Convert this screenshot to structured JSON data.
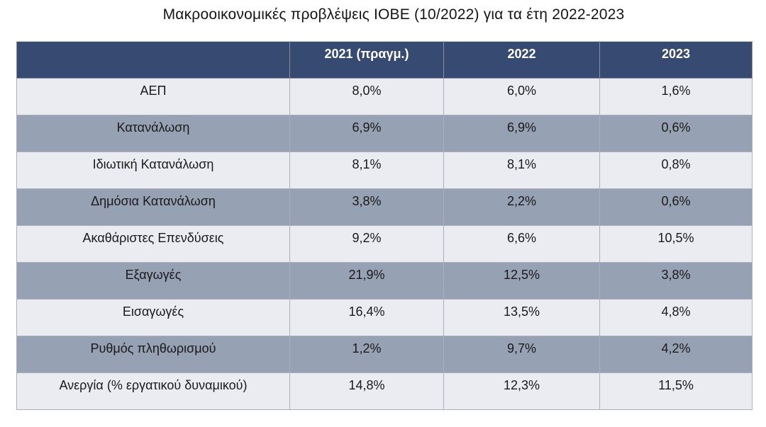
{
  "title": "Μακροοικονομικές προβλέψεις ΙΟΒΕ (10/2022) για τα έτη 2022-2023",
  "table": {
    "headers": [
      "",
      "2021 (πραγμ.)",
      "2022",
      "2023"
    ],
    "rows": [
      {
        "label": "ΑΕΠ",
        "values": [
          "8,0%",
          "6,0%",
          "1,6%"
        ]
      },
      {
        "label": "Κατανάλωση",
        "values": [
          "6,9%",
          "6,9%",
          "0,6%"
        ]
      },
      {
        "label": "Ιδιωτική Κατανάλωση",
        "values": [
          "8,1%",
          "8,1%",
          "0,8%"
        ]
      },
      {
        "label": "Δημόσια Κατανάλωση",
        "values": [
          "3,8%",
          "2,2%",
          "0,6%"
        ]
      },
      {
        "label": "Ακαθάριστες Επενδύσεις",
        "values": [
          "9,2%",
          "6,6%",
          "10,5%"
        ]
      },
      {
        "label": "Εξαγωγές",
        "values": [
          "21,9%",
          "12,5%",
          "3,8%"
        ]
      },
      {
        "label": "Εισαγωγές",
        "values": [
          "16,4%",
          "13,5%",
          "4,8%"
        ]
      },
      {
        "label": "Ρυθμός πληθωρισμού",
        "values": [
          "1,2%",
          "9,7%",
          "4,2%"
        ]
      },
      {
        "label": "Ανεργία (% εργατικού δυναμικού)",
        "values": [
          "14,8%",
          "12,3%",
          "11,5%"
        ]
      }
    ]
  },
  "colors": {
    "header_bg": "#364a72",
    "header_text": "#ffffff",
    "row_light_bg": "#eaecf1",
    "row_dark_bg": "#97a1b4",
    "grid_line": "#aab0be",
    "body_text": "#1a1a1a"
  },
  "chart_data": {
    "type": "table",
    "title": "Μακροοικονομικές προβλέψεις ΙΟΒΕ (10/2022) για τα έτη 2022-2023",
    "columns": [
      "2021 (πραγμ.)",
      "2022",
      "2023"
    ],
    "categories": [
      "ΑΕΠ",
      "Κατανάλωση",
      "Ιδιωτική Κατανάλωση",
      "Δημόσια Κατανάλωση",
      "Ακαθάριστες Επενδύσεις",
      "Εξαγωγές",
      "Εισαγωγές",
      "Ρυθμός πληθωρισμού",
      "Ανεργία (% εργατικού δυναμικού)"
    ],
    "series": [
      {
        "name": "2021 (πραγμ.)",
        "values": [
          8.0,
          6.9,
          8.1,
          3.8,
          9.2,
          21.9,
          16.4,
          1.2,
          14.8
        ]
      },
      {
        "name": "2022",
        "values": [
          6.0,
          6.9,
          8.1,
          2.2,
          6.6,
          12.5,
          13.5,
          9.7,
          12.3
        ]
      },
      {
        "name": "2023",
        "values": [
          1.6,
          0.6,
          0.8,
          0.6,
          10.5,
          3.8,
          4.8,
          4.2,
          11.5
        ]
      }
    ],
    "unit": "%"
  }
}
